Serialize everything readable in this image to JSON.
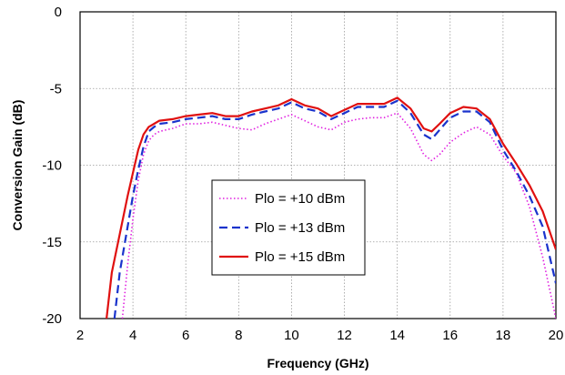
{
  "chart_data": {
    "type": "line",
    "xlabel": "Frequency (GHz)",
    "ylabel": "Conversion Gain (dB)",
    "xlim": [
      2,
      20
    ],
    "ylim": [
      -20,
      0
    ],
    "xticks": [
      2,
      4,
      6,
      8,
      10,
      12,
      14,
      16,
      18,
      20
    ],
    "yticks": [
      0,
      -5,
      -10,
      -15,
      -20
    ],
    "grid": true,
    "legend_position": "center-left",
    "series": [
      {
        "name": "Plo = +10 dBm",
        "color": "#e020e0",
        "style": "dotted",
        "x": [
          3.6,
          3.8,
          4.0,
          4.2,
          4.4,
          4.6,
          4.8,
          5.0,
          5.5,
          6.0,
          6.5,
          7.0,
          7.5,
          8.0,
          8.5,
          9.0,
          9.5,
          10.0,
          10.5,
          11.0,
          11.5,
          12.0,
          12.5,
          13.0,
          13.5,
          14.0,
          14.5,
          15.0,
          15.3,
          15.6,
          16.0,
          16.5,
          17.0,
          17.5,
          18.0,
          18.5,
          19.0,
          19.5,
          20.0
        ],
        "y": [
          -20.0,
          -16.5,
          -13.5,
          -11.0,
          -9.3,
          -8.4,
          -8.0,
          -7.8,
          -7.6,
          -7.3,
          -7.3,
          -7.2,
          -7.4,
          -7.6,
          -7.7,
          -7.3,
          -7.0,
          -6.7,
          -7.1,
          -7.5,
          -7.7,
          -7.2,
          -7.0,
          -6.9,
          -6.9,
          -6.6,
          -7.6,
          -9.3,
          -9.7,
          -9.3,
          -8.5,
          -7.9,
          -7.5,
          -8.0,
          -9.4,
          -10.5,
          -12.7,
          -16.0,
          -20.0
        ]
      },
      {
        "name": "Plo = +13 dBm",
        "color": "#1a33cc",
        "style": "dashed",
        "x": [
          3.3,
          3.5,
          3.8,
          4.0,
          4.2,
          4.4,
          4.6,
          4.8,
          5.0,
          5.5,
          6.0,
          6.5,
          7.0,
          7.5,
          8.0,
          8.5,
          9.0,
          9.5,
          10.0,
          10.5,
          11.0,
          11.5,
          12.0,
          12.5,
          13.0,
          13.5,
          14.0,
          14.5,
          15.0,
          15.3,
          15.6,
          16.0,
          16.5,
          17.0,
          17.5,
          18.0,
          18.5,
          19.0,
          19.5,
          20.0
        ],
        "y": [
          -20.0,
          -17.0,
          -14.0,
          -12.0,
          -10.3,
          -8.8,
          -7.8,
          -7.5,
          -7.3,
          -7.2,
          -7.0,
          -6.9,
          -6.8,
          -7.0,
          -7.0,
          -6.7,
          -6.5,
          -6.3,
          -5.9,
          -6.3,
          -6.5,
          -7.0,
          -6.6,
          -6.2,
          -6.2,
          -6.2,
          -5.8,
          -6.6,
          -8.0,
          -8.3,
          -7.7,
          -6.9,
          -6.5,
          -6.5,
          -7.2,
          -9.0,
          -10.4,
          -12.0,
          -14.0,
          -17.7
        ]
      },
      {
        "name": "Plo = +15 dBm",
        "color": "#e01010",
        "style": "solid",
        "x": [
          3.0,
          3.2,
          3.5,
          3.8,
          4.0,
          4.2,
          4.4,
          4.6,
          4.8,
          5.0,
          5.5,
          6.0,
          6.5,
          7.0,
          7.5,
          8.0,
          8.5,
          9.0,
          9.5,
          10.0,
          10.5,
          11.0,
          11.5,
          12.0,
          12.5,
          13.0,
          13.5,
          14.0,
          14.5,
          15.0,
          15.3,
          15.6,
          16.0,
          16.5,
          17.0,
          17.5,
          18.0,
          18.5,
          19.0,
          19.5,
          20.0
        ],
        "y": [
          -20.0,
          -17.0,
          -14.5,
          -12.0,
          -10.5,
          -9.0,
          -8.0,
          -7.5,
          -7.3,
          -7.1,
          -7.0,
          -6.8,
          -6.7,
          -6.6,
          -6.8,
          -6.8,
          -6.5,
          -6.3,
          -6.1,
          -5.7,
          -6.1,
          -6.3,
          -6.8,
          -6.4,
          -6.0,
          -6.0,
          -6.0,
          -5.6,
          -6.3,
          -7.6,
          -7.8,
          -7.3,
          -6.6,
          -6.2,
          -6.3,
          -7.0,
          -8.6,
          -9.9,
          -11.3,
          -13.0,
          -15.5
        ]
      }
    ]
  }
}
